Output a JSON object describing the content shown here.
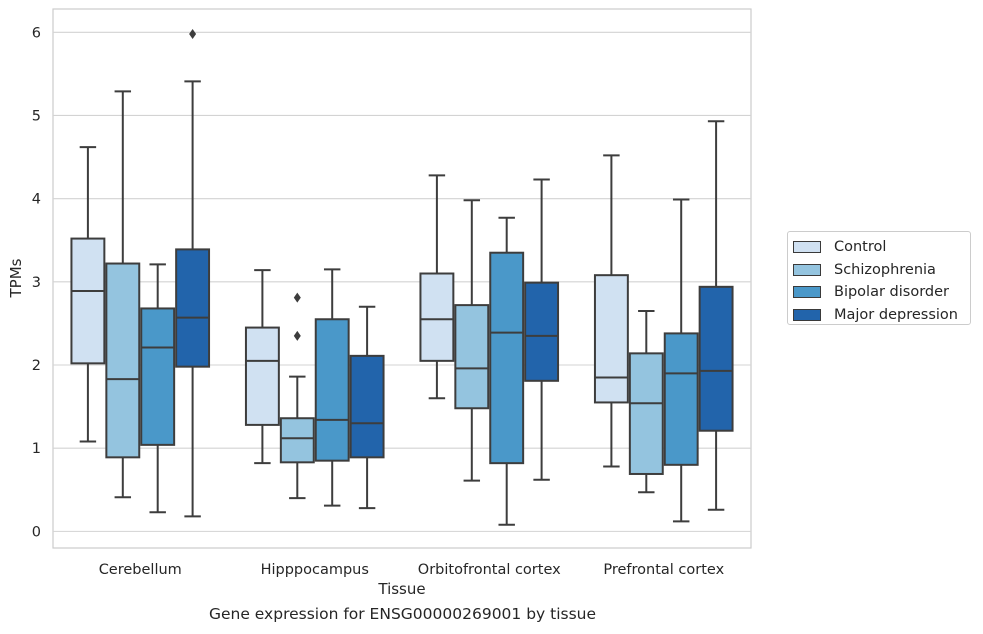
{
  "chart_data": {
    "type": "box",
    "title": "",
    "caption": "Gene expression for ENSG00000269001 by tissue",
    "xlabel": "Tissue",
    "ylabel": "TPMs",
    "ylim": [
      -0.2,
      6.28
    ],
    "yticks": [
      0,
      1,
      2,
      3,
      4,
      5,
      6
    ],
    "grid": "horizontal",
    "legend_position": "right-center",
    "categories": [
      "Cerebellum",
      "Hipppocampus",
      "Orbitofrontal cortex",
      "Prefrontal cortex"
    ],
    "series": [
      {
        "name": "Control",
        "color": "#d0e1f2",
        "boxes": [
          {
            "whislo": 1.08,
            "q1": 2.02,
            "med": 2.89,
            "q3": 3.52,
            "whishi": 4.62,
            "fliers": []
          },
          {
            "whislo": 0.82,
            "q1": 1.28,
            "med": 2.05,
            "q3": 2.45,
            "whishi": 3.14,
            "fliers": []
          },
          {
            "whislo": 1.6,
            "q1": 2.05,
            "med": 2.55,
            "q3": 3.1,
            "whishi": 4.28,
            "fliers": []
          },
          {
            "whislo": 0.78,
            "q1": 1.55,
            "med": 1.85,
            "q3": 3.08,
            "whishi": 4.52,
            "fliers": []
          }
        ]
      },
      {
        "name": "Schizophrenia",
        "color": "#94c4df",
        "boxes": [
          {
            "whislo": 0.41,
            "q1": 0.89,
            "med": 1.83,
            "q3": 3.22,
            "whishi": 5.29,
            "fliers": []
          },
          {
            "whislo": 0.4,
            "q1": 0.83,
            "med": 1.12,
            "q3": 1.36,
            "whishi": 1.86,
            "fliers": [
              2.35,
              2.81
            ]
          },
          {
            "whislo": 0.61,
            "q1": 1.48,
            "med": 1.96,
            "q3": 2.72,
            "whishi": 3.98,
            "fliers": []
          },
          {
            "whislo": 0.47,
            "q1": 0.69,
            "med": 1.54,
            "q3": 2.14,
            "whishi": 2.65,
            "fliers": []
          }
        ]
      },
      {
        "name": "Bipolar disorder",
        "color": "#4a98c9",
        "boxes": [
          {
            "whislo": 0.23,
            "q1": 1.04,
            "med": 2.21,
            "q3": 2.68,
            "whishi": 3.21,
            "fliers": []
          },
          {
            "whislo": 0.31,
            "q1": 0.85,
            "med": 1.34,
            "q3": 2.55,
            "whishi": 3.15,
            "fliers": []
          },
          {
            "whislo": 0.08,
            "q1": 0.82,
            "med": 2.39,
            "q3": 3.35,
            "whishi": 3.77,
            "fliers": []
          },
          {
            "whislo": 0.12,
            "q1": 0.8,
            "med": 1.9,
            "q3": 2.38,
            "whishi": 3.99,
            "fliers": []
          }
        ]
      },
      {
        "name": "Major depression",
        "color": "#2264ab",
        "boxes": [
          {
            "whislo": 0.18,
            "q1": 1.98,
            "med": 2.57,
            "q3": 3.39,
            "whishi": 5.41,
            "fliers": [
              5.98
            ]
          },
          {
            "whislo": 0.28,
            "q1": 0.89,
            "med": 1.3,
            "q3": 2.11,
            "whishi": 2.7,
            "fliers": []
          },
          {
            "whislo": 0.62,
            "q1": 1.81,
            "med": 2.35,
            "q3": 2.99,
            "whishi": 4.23,
            "fliers": []
          },
          {
            "whislo": 0.26,
            "q1": 1.21,
            "med": 1.93,
            "q3": 2.94,
            "whishi": 4.93,
            "fliers": []
          }
        ]
      }
    ]
  }
}
